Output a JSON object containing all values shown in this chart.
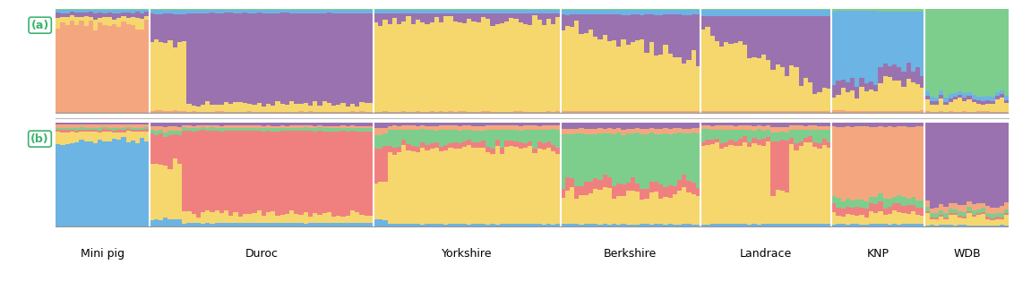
{
  "breeds": [
    "Mini pig",
    "Duroc",
    "Yorkshire",
    "Berkshire",
    "Landrace",
    "KNP",
    "WDB"
  ],
  "breed_sizes": [
    20,
    48,
    40,
    30,
    28,
    20,
    18
  ],
  "panel_a_label": "(a)",
  "panel_b_label": "(b)",
  "colors_k4": [
    "#F4A77E",
    "#F5D76E",
    "#9B72B0",
    "#6CB4E4",
    "#7DCE8D"
  ],
  "colors_k6": [
    "#6CB4E4",
    "#F5D76E",
    "#F08080",
    "#7DCE8D",
    "#F4A77E",
    "#9B72B0"
  ],
  "bg_color": "#ffffff",
  "label_color": "#3CB371",
  "figsize": [
    11.32,
    3.34
  ],
  "dpi": 100
}
